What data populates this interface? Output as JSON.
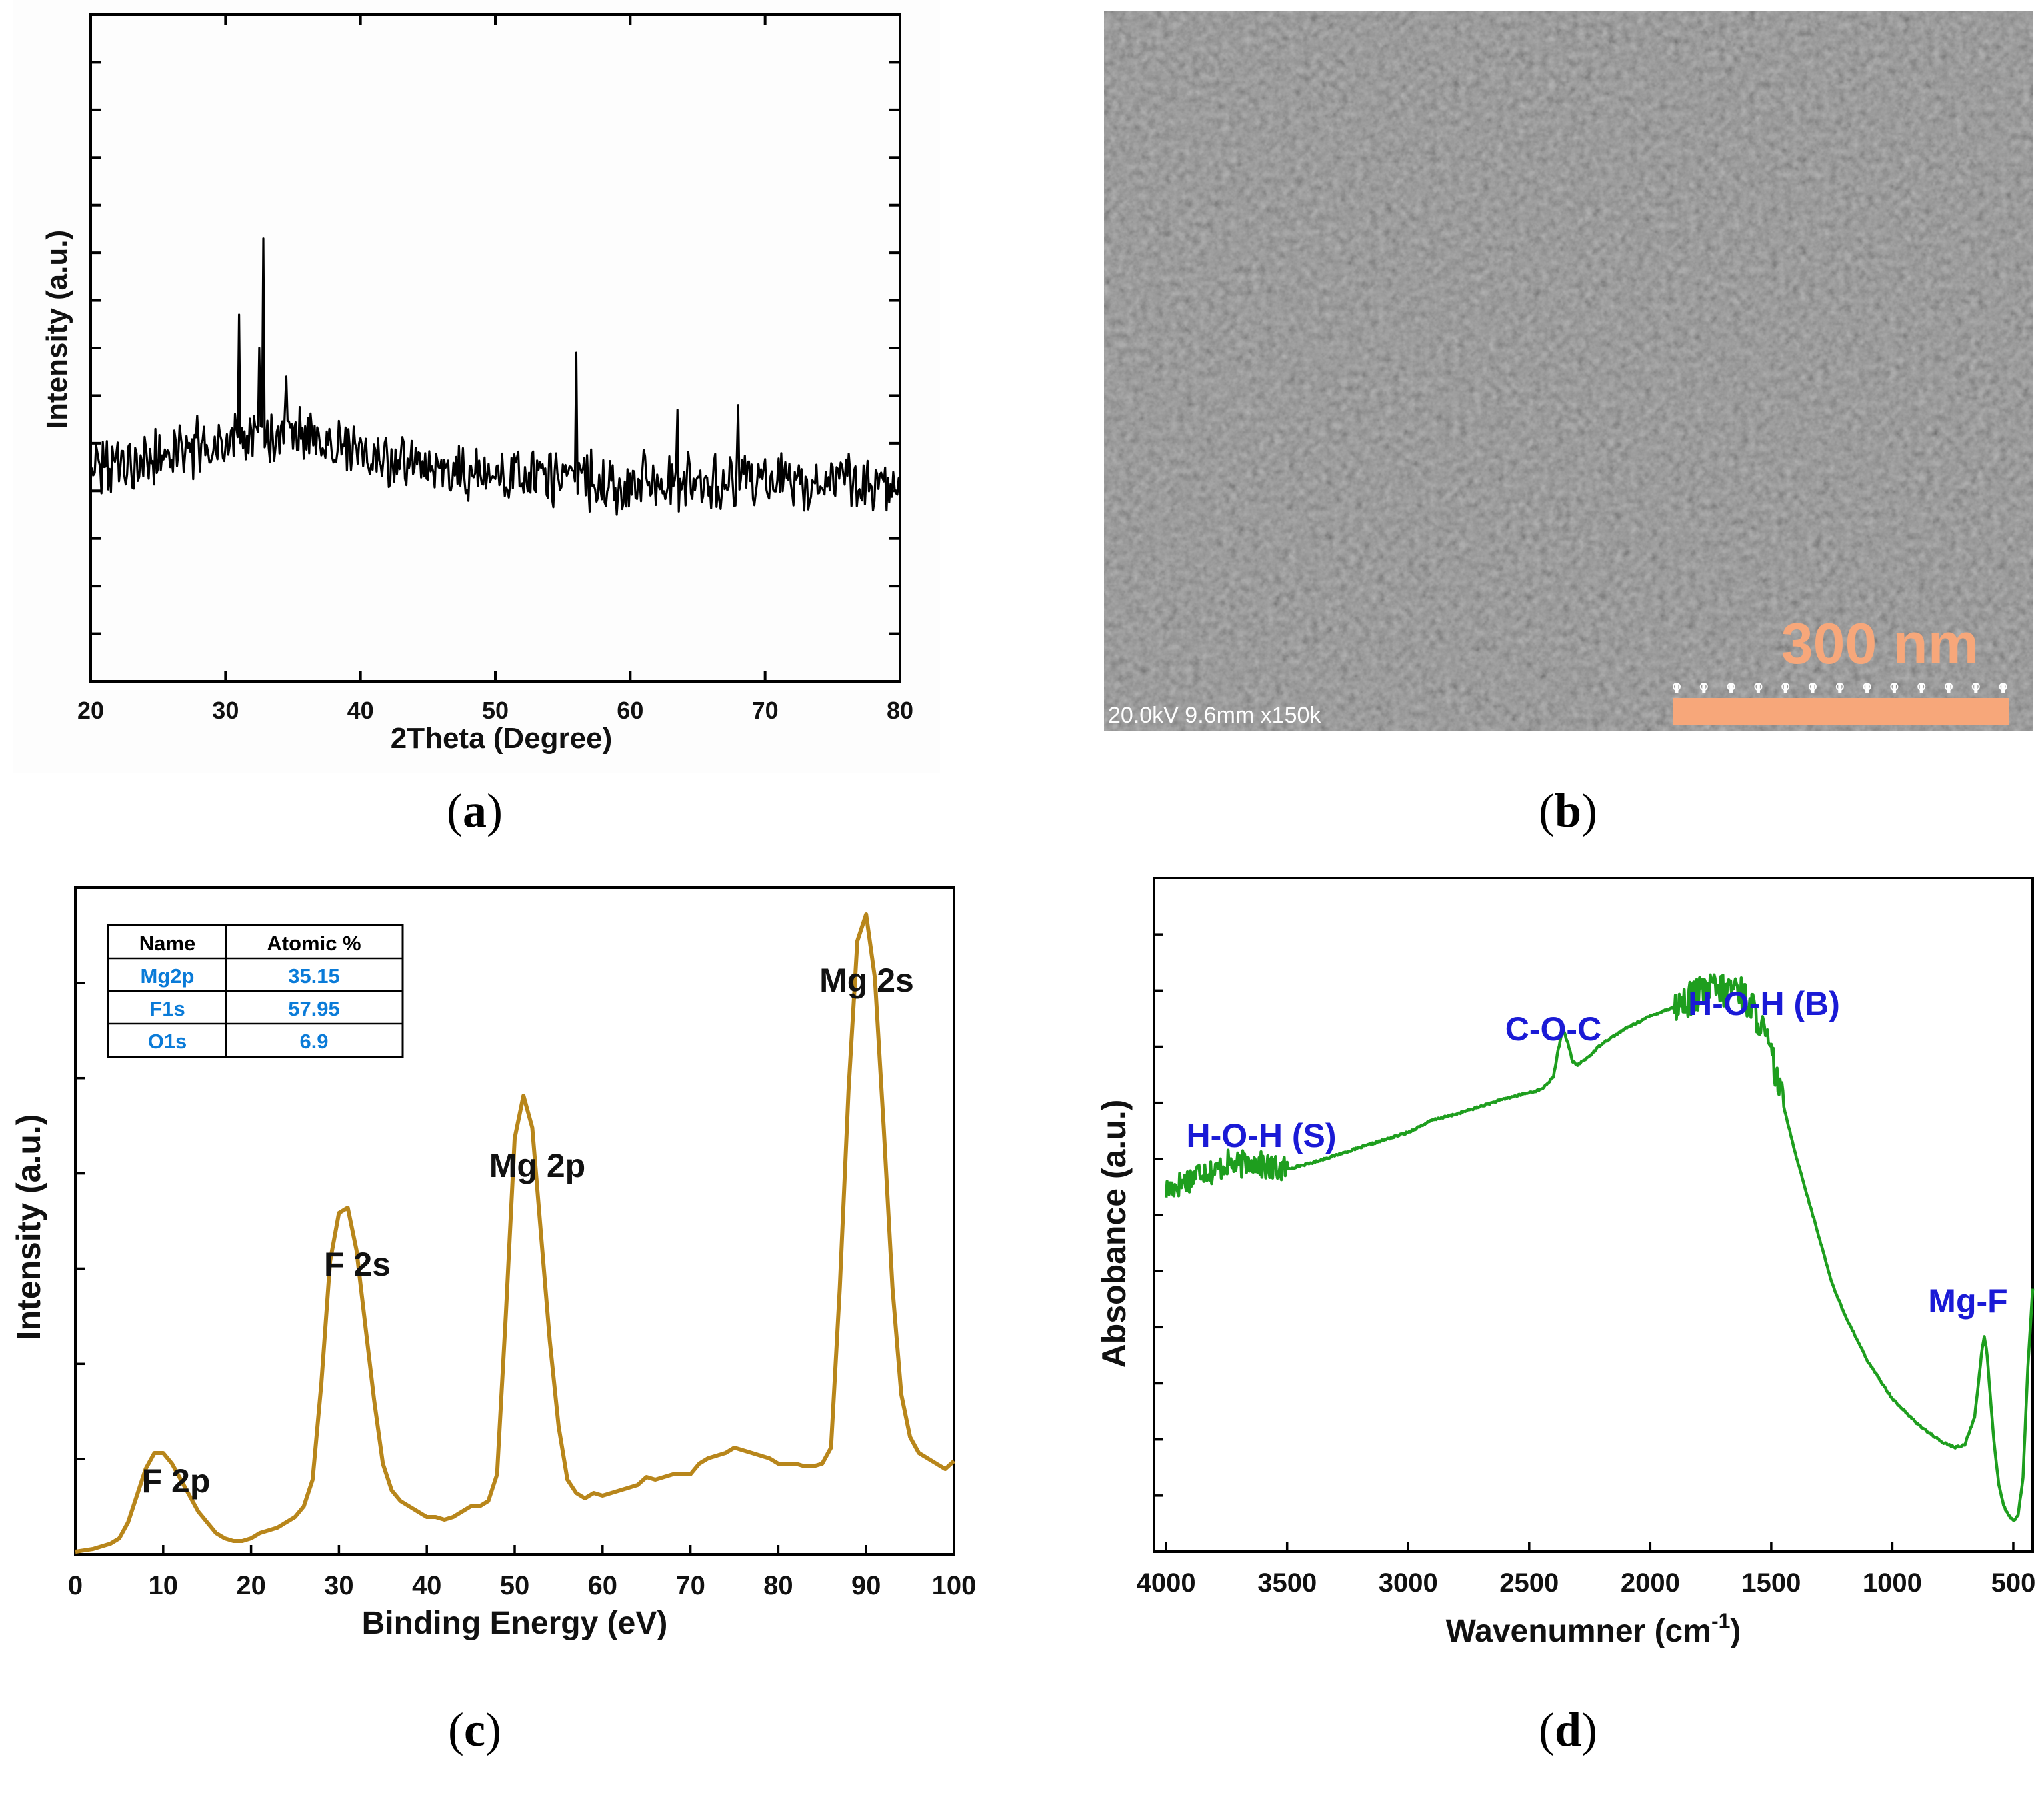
{
  "panels": {
    "a": {
      "label": "(a)",
      "label_parts": [
        "(",
        "a",
        ")"
      ]
    },
    "b": {
      "label": "(b)",
      "label_parts": [
        "(",
        "b",
        ")"
      ],
      "sem_info": "20.0kV 9.6mm x150k",
      "scale_bar_label": "300 nm",
      "scale_bar_color": "#f7a77a"
    },
    "c": {
      "label": "(c)",
      "label_parts": [
        "(",
        "c",
        ")"
      ],
      "table": {
        "headers": [
          "Name",
          "Atomic %"
        ],
        "rows": [
          [
            "Mg2p",
            "35.15"
          ],
          [
            "F1s",
            "57.95"
          ],
          [
            "O1s",
            "6.9"
          ]
        ]
      }
    },
    "d": {
      "label": "(d)",
      "label_parts": [
        "(",
        "d",
        ")"
      ]
    }
  },
  "chart_data": [
    {
      "id": "a",
      "type": "line",
      "title": "",
      "xlabel": "2Theta (Degree)",
      "ylabel": "Intensity (a.u.)",
      "xlim": [
        20,
        80
      ],
      "ylim": [
        0,
        14
      ],
      "x_ticks": [
        20,
        30,
        40,
        50,
        60,
        70,
        80
      ],
      "y_ticks_labeled": false,
      "color": "#000000",
      "noise_profile": {
        "x_step": 0.1,
        "baseline": [
          [
            20,
            4.4
          ],
          [
            25,
            4.7
          ],
          [
            30,
            5.0
          ],
          [
            35,
            5.2
          ],
          [
            40,
            4.8
          ],
          [
            45,
            4.4
          ],
          [
            50,
            4.3
          ],
          [
            60,
            4.2
          ],
          [
            70,
            4.2
          ],
          [
            80,
            4.2
          ]
        ],
        "noise_amplitude": 0.55
      },
      "peaks": [
        {
          "x": 31.0,
          "y": 7.7
        },
        {
          "x": 32.5,
          "y": 7.0
        },
        {
          "x": 32.8,
          "y": 9.3
        },
        {
          "x": 34.5,
          "y": 6.4
        },
        {
          "x": 56.0,
          "y": 6.9
        },
        {
          "x": 63.5,
          "y": 5.7
        },
        {
          "x": 68.0,
          "y": 5.8
        }
      ]
    },
    {
      "id": "c",
      "type": "line",
      "title": "",
      "xlabel": "Binding Energy (eV)",
      "ylabel": "Intensity (a.u.)",
      "xlim": [
        0,
        100
      ],
      "ylim": [
        0,
        1.25
      ],
      "x_ticks": [
        0,
        10,
        20,
        30,
        40,
        50,
        60,
        70,
        80,
        90,
        100
      ],
      "y_ticks_labeled": false,
      "color": "#b8861b",
      "x": [
        0,
        2,
        4,
        5,
        6,
        7,
        8,
        9,
        10,
        11,
        12,
        13,
        14,
        15,
        16,
        17,
        18,
        19,
        20,
        21,
        22,
        23,
        24,
        25,
        26,
        27,
        28,
        29,
        30,
        31,
        32,
        33,
        34,
        35,
        36,
        37,
        38,
        39,
        40,
        41,
        42,
        43,
        44,
        45,
        46,
        47,
        48,
        49,
        50,
        51,
        52,
        53,
        54,
        55,
        56,
        57,
        58,
        59,
        60,
        62,
        64,
        65,
        66,
        67,
        68,
        69,
        70,
        71,
        72,
        73,
        74,
        75,
        76,
        77,
        78,
        79,
        80,
        81,
        82,
        83,
        84,
        85,
        86,
        87,
        88,
        89,
        90,
        91,
        92,
        93,
        94,
        95,
        96,
        97,
        98,
        99,
        100
      ],
      "values": [
        0.005,
        0.01,
        0.02,
        0.03,
        0.06,
        0.11,
        0.16,
        0.19,
        0.19,
        0.17,
        0.14,
        0.11,
        0.08,
        0.06,
        0.04,
        0.03,
        0.025,
        0.025,
        0.03,
        0.04,
        0.045,
        0.05,
        0.06,
        0.07,
        0.09,
        0.14,
        0.32,
        0.55,
        0.64,
        0.65,
        0.57,
        0.43,
        0.29,
        0.17,
        0.12,
        0.1,
        0.09,
        0.08,
        0.07,
        0.07,
        0.065,
        0.07,
        0.08,
        0.09,
        0.09,
        0.1,
        0.15,
        0.45,
        0.78,
        0.86,
        0.8,
        0.6,
        0.4,
        0.24,
        0.14,
        0.115,
        0.105,
        0.115,
        0.11,
        0.12,
        0.13,
        0.145,
        0.14,
        0.145,
        0.15,
        0.15,
        0.15,
        0.17,
        0.18,
        0.185,
        0.19,
        0.2,
        0.195,
        0.19,
        0.185,
        0.18,
        0.17,
        0.17,
        0.17,
        0.165,
        0.165,
        0.17,
        0.2,
        0.5,
        0.87,
        1.15,
        1.2,
        1.08,
        0.8,
        0.5,
        0.3,
        0.22,
        0.19,
        0.18,
        0.17,
        0.16,
        0.175
      ]
    },
    {
      "id": "d",
      "type": "line",
      "title": "",
      "xlabel": "Wavenumner (cm",
      "xlabel_sup": "-1",
      "xlabel_close": ")",
      "ylabel": "Absobance (a.u.)",
      "xlim": [
        4050,
        420
      ],
      "ylim": [
        0,
        11
      ],
      "x_ticks": [
        4000,
        3500,
        3000,
        2500,
        2000,
        1500,
        1000,
        500
      ],
      "y_ticks_labeled": false,
      "color": "#1e9e1e",
      "x": [
        4000,
        3950,
        3900,
        3850,
        3800,
        3750,
        3700,
        3650,
        3600,
        3550,
        3500,
        3400,
        3200,
        3000,
        2900,
        2800,
        2600,
        2450,
        2400,
        2380,
        2360,
        2340,
        2320,
        2300,
        2250,
        2200,
        2100,
        2000,
        1900,
        1800,
        1750,
        1700,
        1650,
        1600,
        1550,
        1500,
        1450,
        1400,
        1350,
        1300,
        1250,
        1200,
        1100,
        1000,
        900,
        800,
        740,
        700,
        660,
        640,
        630,
        620,
        610,
        600,
        580,
        560,
        540,
        520,
        500,
        480,
        460,
        440,
        420
      ],
      "values": [
        5.9,
        6.0,
        6.1,
        6.25,
        6.2,
        6.35,
        6.3,
        6.4,
        6.3,
        6.25,
        6.25,
        6.35,
        6.6,
        6.85,
        7.05,
        7.15,
        7.4,
        7.55,
        7.75,
        8.2,
        8.55,
        8.3,
        8.0,
        7.95,
        8.1,
        8.3,
        8.55,
        8.75,
        8.9,
        9.1,
        9.2,
        9.15,
        9.25,
        9.0,
        8.7,
        8.1,
        7.3,
        6.5,
        5.8,
        5.1,
        4.4,
        3.9,
        3.1,
        2.5,
        2.1,
        1.8,
        1.7,
        1.75,
        2.2,
        2.9,
        3.3,
        3.5,
        3.3,
        2.8,
        1.8,
        1.1,
        0.75,
        0.6,
        0.5,
        0.6,
        1.2,
        3.0,
        4.3
      ],
      "noise_amplitude": {
        "3500-4000": 0.22,
        "1450-1900": 0.28
      }
    }
  ],
  "annotations": {
    "c": [
      {
        "text": "F 2p"
      },
      {
        "text": "F 2s"
      },
      {
        "text": "Mg 2p"
      },
      {
        "text": "Mg 2s"
      }
    ],
    "d": [
      {
        "text": "H-O-H (S)"
      },
      {
        "text": "C-O-C"
      },
      {
        "text": "H-O-H (B)"
      },
      {
        "text": "Mg-F"
      }
    ]
  },
  "colors": {
    "xrd": "#000000",
    "xps": "#b8861b",
    "ftir": "#1e9e1e",
    "label_blue": "#1a1ad6",
    "table_blue": "#0a7bd8",
    "sem_bg": "#6f6f6f"
  }
}
